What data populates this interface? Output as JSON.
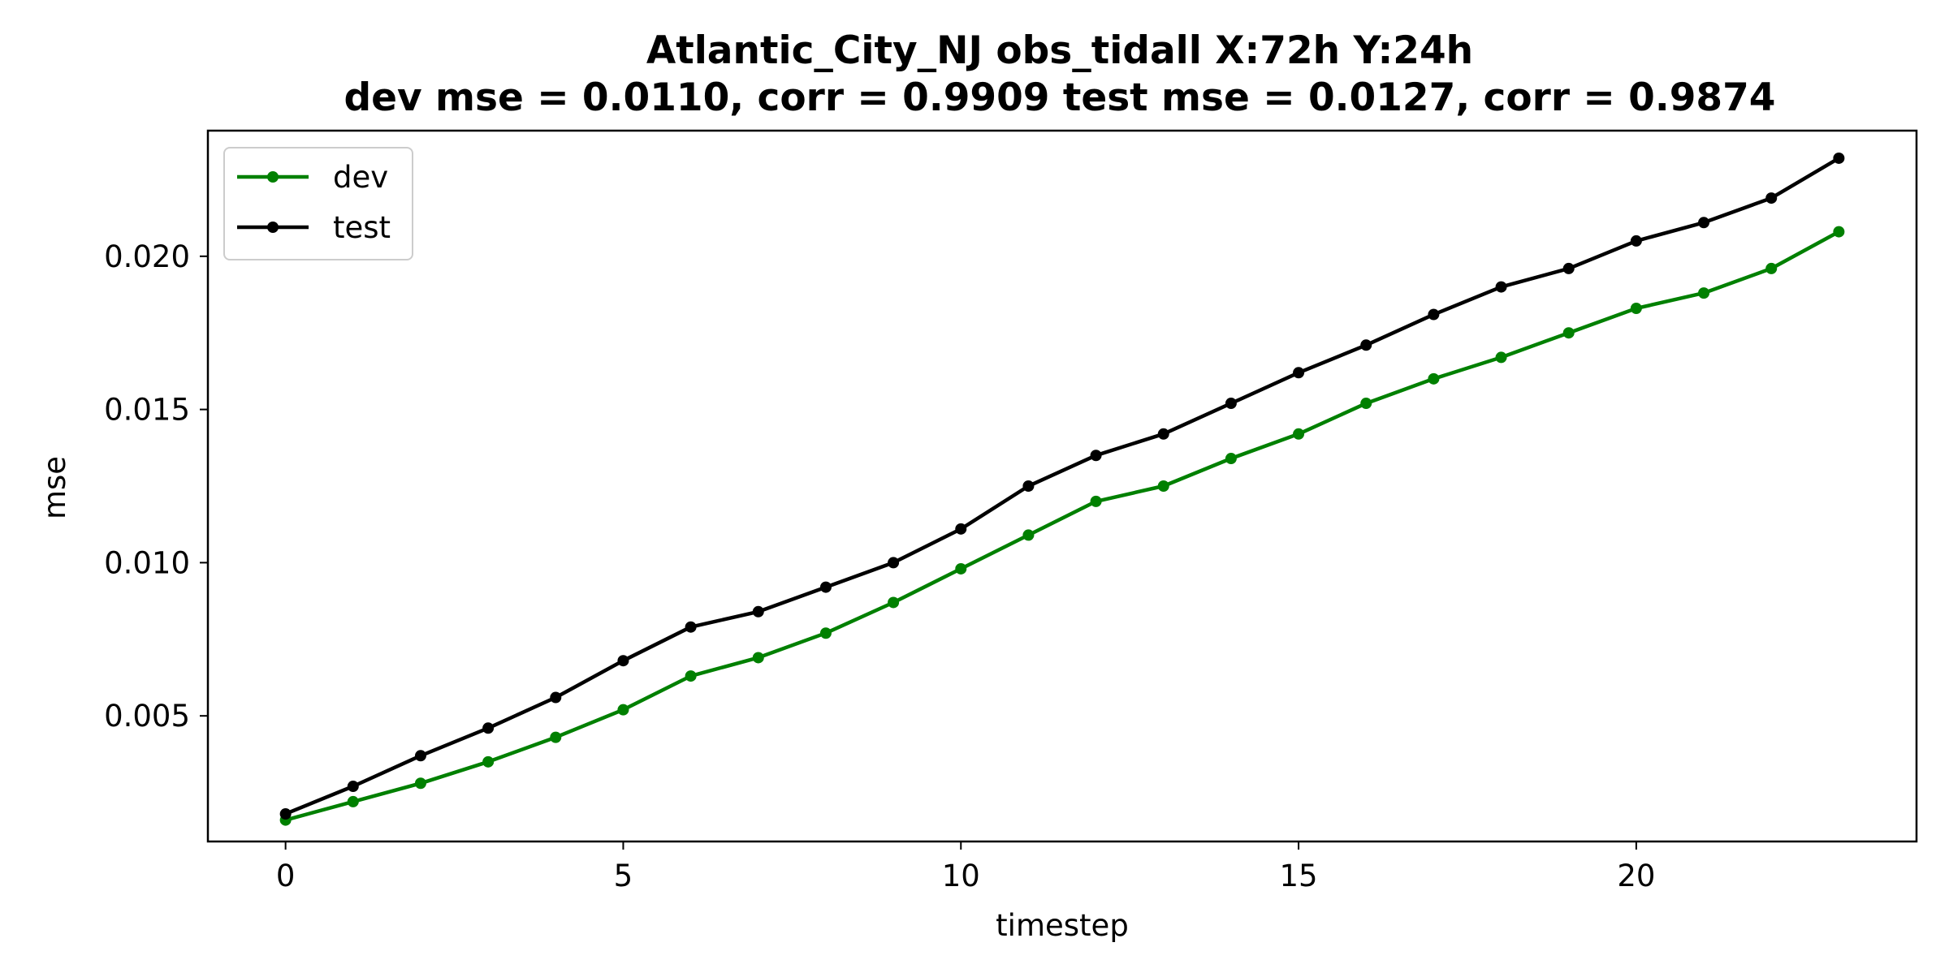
{
  "chart_data": {
    "type": "line",
    "title_line1": "Atlantic_City_NJ   obs_tidall   X:72h   Y:24h",
    "title_line2": "dev mse = 0.0110, corr = 0.9909   test mse = 0.0127, corr = 0.9874",
    "xlabel": "timestep",
    "ylabel": "mse",
    "xlim": [
      -1.15,
      24.15
    ],
    "ylim": [
      0.0009,
      0.0241
    ],
    "xticks": [
      0,
      5,
      10,
      15,
      20
    ],
    "xtick_labels": [
      "0",
      "5",
      "10",
      "15",
      "20"
    ],
    "yticks": [
      0.005,
      0.01,
      0.015,
      0.02
    ],
    "ytick_labels": [
      "0.005",
      "0.010",
      "0.015",
      "0.020"
    ],
    "grid": false,
    "legend_position": "upper-left",
    "x": [
      0,
      1,
      2,
      3,
      4,
      5,
      6,
      7,
      8,
      9,
      10,
      11,
      12,
      13,
      14,
      15,
      16,
      17,
      18,
      19,
      20,
      21,
      22,
      23
    ],
    "series": [
      {
        "name": "dev",
        "color": "#008000",
        "values": [
          0.0016,
          0.0022,
          0.0028,
          0.0035,
          0.0043,
          0.0052,
          0.0063,
          0.0069,
          0.0077,
          0.0087,
          0.0098,
          0.0109,
          0.012,
          0.0125,
          0.0134,
          0.0142,
          0.0152,
          0.016,
          0.0167,
          0.0175,
          0.0183,
          0.0188,
          0.0196,
          0.0208
        ]
      },
      {
        "name": "test",
        "color": "#000000",
        "values": [
          0.0018,
          0.0027,
          0.0037,
          0.0046,
          0.0056,
          0.0068,
          0.0079,
          0.0084,
          0.0092,
          0.01,
          0.0111,
          0.0125,
          0.0135,
          0.0142,
          0.0152,
          0.0162,
          0.0171,
          0.0181,
          0.019,
          0.0196,
          0.0205,
          0.0211,
          0.0219,
          0.0232
        ]
      }
    ]
  }
}
